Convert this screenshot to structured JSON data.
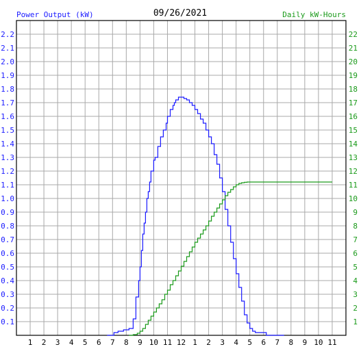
{
  "chart_data": {
    "type": "line",
    "title": "09/26/2021",
    "left_axis_label": "Power Output (kW)",
    "right_axis_label": "Daily kW-Hours",
    "colors": {
      "power": "#1a1aff",
      "energy": "#1a9a1a",
      "left_axis_text": "#1a1aff",
      "right_axis_text": "#1a9a1a",
      "grid": "#a8a8a8",
      "frame": "#000000",
      "title_text": "#000000",
      "x_tick_text": "#000000"
    },
    "x_ticks": [
      "1",
      "2",
      "3",
      "4",
      "5",
      "6",
      "7",
      "8",
      "9",
      "10",
      "11",
      "12",
      "1",
      "2",
      "3",
      "4",
      "5",
      "6",
      "7",
      "8",
      "9",
      "10",
      "11"
    ],
    "x_range_hours": [
      0,
      24
    ],
    "left_ticks": [
      "0.1",
      "0.2",
      "0.3",
      "0.4",
      "0.5",
      "0.6",
      "0.7",
      "0.8",
      "0.9",
      "1.0",
      "1.1",
      "1.2",
      "1.3",
      "1.4",
      "1.5",
      "1.6",
      "1.7",
      "1.8",
      "1.9",
      "2.0",
      "2.1",
      "2.2"
    ],
    "left_range": [
      0,
      2.3
    ],
    "right_ticks": [
      "1",
      "2",
      "3",
      "4",
      "5",
      "6",
      "7",
      "8",
      "9",
      "10",
      "11",
      "12",
      "13",
      "14",
      "15",
      "16",
      "17",
      "18",
      "19",
      "20",
      "21",
      "22"
    ],
    "right_range": [
      0,
      23
    ],
    "grid": true,
    "series": [
      {
        "axis": "left",
        "x": [
          6.6,
          7.1,
          7.4,
          7.8,
          8.2,
          8.5,
          8.7,
          8.9,
          9.0,
          9.1,
          9.2,
          9.3,
          9.4,
          9.5,
          9.6,
          9.7,
          9.8,
          10.0,
          10.1,
          10.3,
          10.5,
          10.7,
          10.9,
          11.0,
          11.2,
          11.4,
          11.5,
          11.6,
          11.8,
          12.0,
          12.2,
          12.4,
          12.6,
          12.8,
          13.0,
          13.2,
          13.4,
          13.6,
          13.8,
          14.0,
          14.2,
          14.4,
          14.6,
          14.8,
          15.0,
          15.2,
          15.4,
          15.6,
          15.8,
          16.0,
          16.2,
          16.4,
          16.6,
          16.8,
          17.0,
          17.2,
          17.4,
          17.6,
          17.8,
          18.0,
          18.2,
          18.4,
          18.6,
          18.8,
          19.0,
          19.3,
          19.5
        ],
        "values": [
          0,
          0.02,
          0.03,
          0.04,
          0.05,
          0.12,
          0.28,
          0.4,
          0.5,
          0.62,
          0.74,
          0.82,
          0.9,
          1.0,
          1.05,
          1.12,
          1.2,
          1.28,
          1.3,
          1.38,
          1.45,
          1.5,
          1.55,
          1.6,
          1.65,
          1.68,
          1.7,
          1.72,
          1.74,
          1.74,
          1.73,
          1.72,
          1.7,
          1.68,
          1.65,
          1.62,
          1.58,
          1.55,
          1.5,
          1.45,
          1.4,
          1.32,
          1.25,
          1.15,
          1.05,
          0.92,
          0.8,
          0.68,
          0.56,
          0.45,
          0.35,
          0.25,
          0.15,
          0.09,
          0.05,
          0.03,
          0.02,
          0.02,
          0.02,
          0.02,
          0.0,
          0.0,
          0.0,
          0.0,
          0.0,
          0.0,
          0.0
        ]
      },
      {
        "axis": "right",
        "x": [
          8.2,
          8.5,
          8.8,
          9.0,
          9.2,
          9.4,
          9.6,
          9.8,
          10.0,
          10.2,
          10.4,
          10.6,
          10.8,
          11.0,
          11.2,
          11.4,
          11.6,
          11.8,
          12.0,
          12.2,
          12.4,
          12.6,
          12.8,
          13.0,
          13.2,
          13.4,
          13.6,
          13.8,
          14.0,
          14.2,
          14.4,
          14.6,
          14.8,
          15.0,
          15.2,
          15.4,
          15.6,
          15.8,
          16.0,
          16.2,
          16.4,
          16.6,
          16.8,
          17.0,
          17.2,
          17.5,
          18.0,
          19.0,
          20.0,
          21.0,
          22.0,
          23.0
        ],
        "values": [
          0,
          0.05,
          0.15,
          0.3,
          0.5,
          0.8,
          1.1,
          1.4,
          1.7,
          2.0,
          2.3,
          2.6,
          3.0,
          3.3,
          3.7,
          4.0,
          4.35,
          4.7,
          5.05,
          5.4,
          5.75,
          6.1,
          6.45,
          6.8,
          7.1,
          7.4,
          7.7,
          8.0,
          8.35,
          8.7,
          9.0,
          9.3,
          9.6,
          9.9,
          10.2,
          10.45,
          10.65,
          10.85,
          11.0,
          11.1,
          11.15,
          11.18,
          11.2,
          11.2,
          11.2,
          11.2,
          11.2,
          11.2,
          11.2,
          11.2,
          11.2,
          11.2
        ]
      }
    ]
  }
}
